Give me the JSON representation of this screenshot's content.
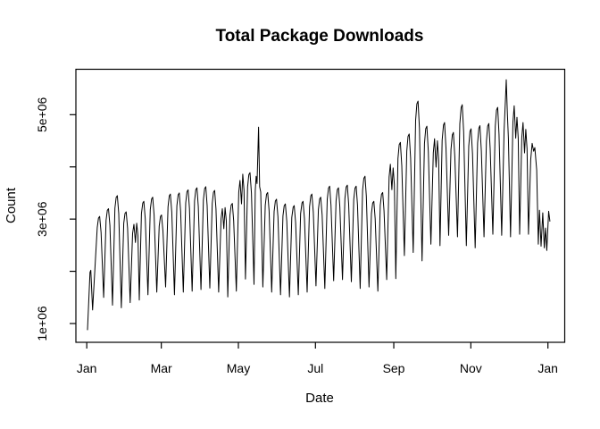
{
  "colors": {
    "line": "#000000",
    "text": "#000000",
    "background": "#ffffff"
  },
  "chart_data": {
    "type": "line",
    "title": "Total Package Downloads",
    "xlabel": "Date",
    "ylabel": "Count",
    "legend": null,
    "grid": false,
    "y_unit": "downloads per day (values in millions)",
    "x_unit": "day of year (0 = Jan 1)",
    "ylim_millions": [
      0.64,
      5.87
    ],
    "xlim_days": [
      -8.6,
      378.3
    ],
    "x_ticks": [
      {
        "day": 0,
        "label": "Jan"
      },
      {
        "day": 59,
        "label": "Mar"
      },
      {
        "day": 120,
        "label": "May"
      },
      {
        "day": 181,
        "label": "Jul"
      },
      {
        "day": 243,
        "label": "Sep"
      },
      {
        "day": 304,
        "label": "Nov"
      },
      {
        "day": 365,
        "label": "Jan"
      }
    ],
    "y_ticks": [
      {
        "value": 1,
        "label": "1e+06"
      },
      {
        "value": 2,
        "label": ""
      },
      {
        "value": 3,
        "label": "3e+06"
      },
      {
        "value": 4,
        "label": ""
      },
      {
        "value": 5,
        "label": "5e+06"
      }
    ],
    "head": [
      [
        0.6,
        0.88
      ],
      [
        2.6,
        1.98
      ],
      [
        3.2,
        2.02
      ],
      [
        4.6,
        1.26
      ]
    ],
    "weeks": [
      {
        "d": 10,
        "p": 3.05,
        "t": 1.5
      },
      {
        "d": 17,
        "p": 3.2,
        "t": 1.35
      },
      {
        "d": 24,
        "p": 3.45,
        "t": 1.3
      },
      {
        "d": 31,
        "p": 3.14,
        "t": 1.4
      },
      {
        "d": 38,
        "p": 2.9,
        "p2": 2.92,
        "t": 1.45
      },
      {
        "d": 45,
        "p": 3.34,
        "t": 1.55
      },
      {
        "d": 52,
        "p": 3.42,
        "t": 1.6
      },
      {
        "d": 59,
        "p": 3.08,
        "t": 1.7
      },
      {
        "d": 66,
        "p": 3.48,
        "t": 1.55
      },
      {
        "d": 73,
        "p": 3.5,
        "t": 1.6
      },
      {
        "d": 80,
        "p": 3.56,
        "t": 1.62
      },
      {
        "d": 87,
        "p": 3.6,
        "t": 1.65
      },
      {
        "d": 94,
        "p": 3.62,
        "t": 1.68
      },
      {
        "d": 101,
        "p": 3.55,
        "t": 1.6
      },
      {
        "d": 108,
        "p": 3.2,
        "p2": 3.22,
        "t": 1.51
      },
      {
        "d": 115,
        "p": 3.3,
        "t": 1.62
      },
      {
        "d": 122,
        "p": 3.74,
        "p2": 3.86,
        "t": 1.85
      },
      {
        "d": 129,
        "p": 3.89,
        "t": 1.75
      },
      {
        "d": 136,
        "pts": [
          [
            -2.6,
            3.55
          ],
          [
            -1.9,
            3.82
          ],
          [
            -1.2,
            3.68
          ],
          [
            0,
            4.76
          ],
          [
            0.8,
            3.62
          ],
          [
            1.7,
            3.52
          ],
          [
            3.4,
            1.7
          ]
        ]
      },
      {
        "d": 143,
        "p": 3.51,
        "t": 1.6
      },
      {
        "d": 150,
        "p": 3.38,
        "t": 1.55
      },
      {
        "d": 157,
        "p": 3.29,
        "t": 1.51
      },
      {
        "d": 164,
        "p": 3.26,
        "t": 1.55
      },
      {
        "d": 171,
        "p": 3.34,
        "t": 1.6
      },
      {
        "d": 178,
        "p": 3.48,
        "t": 1.72
      },
      {
        "d": 185,
        "p": 3.42,
        "t": 1.67
      },
      {
        "d": 192,
        "p": 3.63,
        "t": 1.82
      },
      {
        "d": 199,
        "p": 3.6,
        "t": 1.84
      },
      {
        "d": 206,
        "p": 3.65,
        "t": 1.8
      },
      {
        "d": 213,
        "p": 3.63,
        "t": 1.67
      },
      {
        "d": 220,
        "p": 3.82,
        "t": 1.7
      },
      {
        "d": 227,
        "p": 3.34,
        "t": 1.62
      },
      {
        "d": 234,
        "p": 3.51,
        "t": 1.84
      },
      {
        "d": 241,
        "p": 4.05,
        "p2": 3.98,
        "t": 1.86
      },
      {
        "d": 248,
        "p": 4.47,
        "t": 2.3
      },
      {
        "d": 255,
        "p": 4.63,
        "t": 2.36
      },
      {
        "d": 262,
        "p": 5.26,
        "t": 2.2
      },
      {
        "d": 269,
        "p": 4.78,
        "t": 2.52
      },
      {
        "d": 276,
        "p": 4.54,
        "p2": 4.5,
        "t": 2.49
      },
      {
        "d": 283,
        "p": 4.85,
        "t": 2.69
      },
      {
        "d": 290,
        "p": 4.66,
        "t": 2.66
      },
      {
        "d": 297,
        "p": 5.19,
        "t": 2.49
      },
      {
        "d": 304,
        "p": 4.73,
        "t": 2.45
      },
      {
        "d": 311,
        "p": 4.79,
        "t": 2.66
      },
      {
        "d": 318,
        "p": 4.83,
        "t": 2.71
      },
      {
        "d": 325,
        "p": 5.14,
        "t": 2.69
      },
      {
        "d": 332,
        "pts": [
          [
            -1.7,
            4.7
          ],
          [
            -0.7,
            5.25
          ],
          [
            0,
            5.67
          ],
          [
            0.9,
            5.0
          ],
          [
            1.7,
            4.55
          ],
          [
            3.4,
            2.66
          ]
        ]
      },
      {
        "d": 339,
        "p": 5.17,
        "p2": 4.95,
        "t": 2.71
      },
      {
        "d": 346,
        "p": 4.85,
        "p2": 4.72,
        "t": 2.71
      },
      {
        "d": 353,
        "pts": [
          [
            -1.6,
            4.14
          ],
          [
            -0.5,
            4.45
          ],
          [
            0.7,
            4.3
          ],
          [
            1.6,
            4.37
          ],
          [
            3.1,
            3.94
          ],
          [
            4.4,
            2.52
          ],
          [
            5.3,
            3.17
          ],
          [
            6.6,
            2.48
          ],
          [
            7.9,
            3.12
          ],
          [
            9.1,
            2.45
          ],
          [
            10.1,
            2.83
          ],
          [
            11.1,
            2.4
          ],
          [
            12.6,
            3.15
          ],
          [
            13.6,
            2.96
          ]
        ]
      }
    ]
  }
}
